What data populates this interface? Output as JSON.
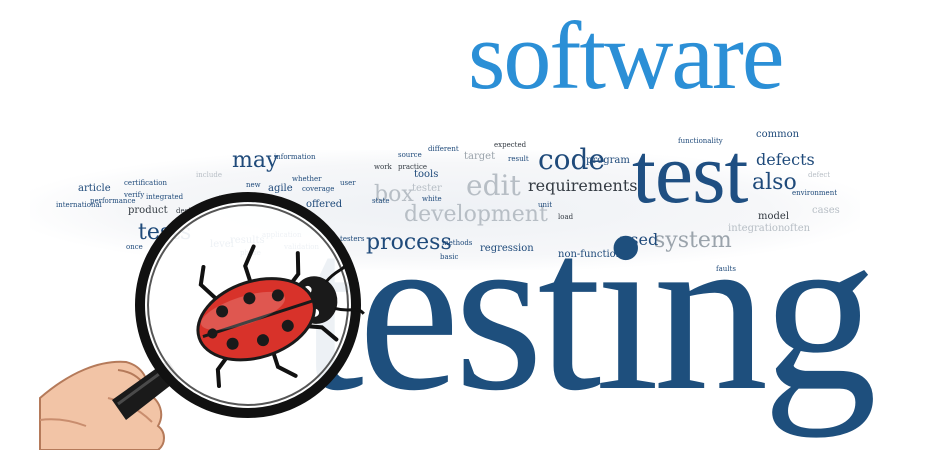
{
  "headline": {
    "word1": "software",
    "word2": "test",
    "word3": "testing"
  },
  "cloud_words": {
    "may": "may",
    "code": "code",
    "program": "program",
    "defects": "defects",
    "also": "also",
    "requirements": "requirements",
    "edit": "edit",
    "development": "development",
    "process": "process",
    "system": "system",
    "used": "used",
    "non_functional": "non-functional",
    "regression": "regression",
    "tests": "tests",
    "offered": "offered",
    "agile": "agile",
    "article": "article",
    "product": "product",
    "institute": "institute",
    "results": "results",
    "level": "level",
    "box": "box",
    "tester": "tester",
    "tools": "tools",
    "target": "target",
    "expected": "expected",
    "functionality": "functionality",
    "common": "common",
    "model": "model",
    "integration": "integration",
    "often": "often",
    "methods": "methods",
    "testers": "testers",
    "isbn": "isbn",
    "source": "source",
    "performance": "performance",
    "international": "international",
    "design": "design",
    "new": "new",
    "different": "different",
    "coverage": "coverage",
    "whether": "whether",
    "user": "user",
    "load": "load",
    "environment": "environment",
    "faults": "faults",
    "result": "result",
    "basic": "basic",
    "application": "application",
    "information": "information",
    "certification": "certification",
    "verify": "verify",
    "integrated": "integrated",
    "include": "include",
    "cases": "cases",
    "defect": "defect",
    "white": "white",
    "work": "work",
    "practice": "practice",
    "once": "once",
    "validation": "validation",
    "phase": "phase",
    "state": "state",
    "unit": "unit"
  }
}
